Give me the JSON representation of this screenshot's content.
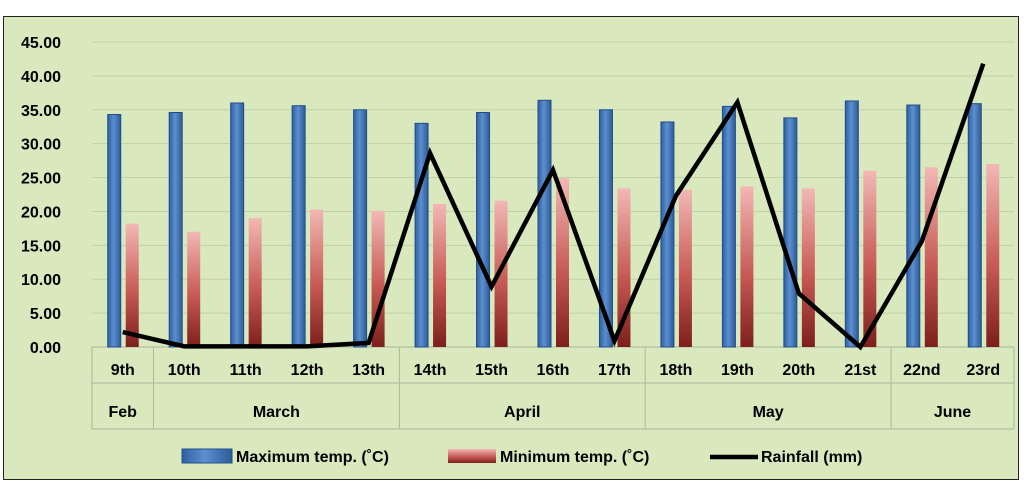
{
  "chart_data": {
    "type": "bar",
    "categories": [
      "9th",
      "10th",
      "11th",
      "12th",
      "13th",
      "14th",
      "15th",
      "16th",
      "17th",
      "18th",
      "19th",
      "20th",
      "21st",
      "22nd",
      "23rd"
    ],
    "groups": [
      {
        "label": "Feb",
        "count": 1
      },
      {
        "label": "March",
        "count": 4
      },
      {
        "label": "April",
        "count": 4
      },
      {
        "label": "May",
        "count": 4
      },
      {
        "label": "June",
        "count": 2
      }
    ],
    "series": [
      {
        "name": "Maximum temp. (˚C)",
        "type": "bar",
        "color": "#4f81bd",
        "values": [
          34.3,
          34.6,
          36.0,
          35.6,
          35.0,
          33.0,
          34.6,
          36.4,
          35.0,
          33.2,
          35.5,
          33.8,
          36.3,
          35.7,
          35.9
        ]
      },
      {
        "name": "Minimum temp. (˚C)",
        "type": "bar",
        "color": "#c0504d",
        "values": [
          18.2,
          17.0,
          19.0,
          20.3,
          20.1,
          21.1,
          21.6,
          24.9,
          23.4,
          23.2,
          23.7,
          23.4,
          26.0,
          26.5,
          27.0
        ]
      },
      {
        "name": "Rainfall (mm)",
        "type": "line",
        "color": "#000000",
        "values": [
          2.2,
          0.1,
          0.1,
          0.1,
          0.6,
          28.6,
          8.9,
          26.1,
          0.9,
          22.3,
          36.1,
          7.9,
          0.0,
          15.6,
          41.8
        ]
      }
    ],
    "yticks": [
      "0.00",
      "5.00",
      "10.00",
      "15.00",
      "20.00",
      "25.00",
      "30.00",
      "35.00",
      "40.00",
      "45.00"
    ],
    "ylim": [
      0,
      45
    ],
    "grid": true,
    "legend": "bottom"
  }
}
